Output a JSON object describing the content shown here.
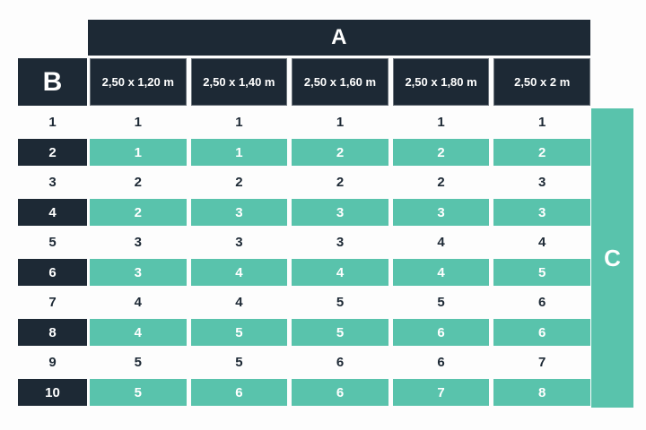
{
  "colors": {
    "navy": "#1d2935",
    "teal": "#59c3ac",
    "background": "#fdfdfd",
    "light_text": "#ffffff"
  },
  "table": {
    "a_header": "A",
    "b_header": "B",
    "c_header": "C",
    "columns": [
      "2,50 x 1,20 m",
      "2,50 x 1,40 m",
      "2,50 x 1,60 m",
      "2,50 x 1,80 m",
      "2,50 x 2 m"
    ],
    "rows": [
      {
        "label": "1",
        "values": [
          "1",
          "1",
          "1",
          "1",
          "1"
        ],
        "highlighted": false
      },
      {
        "label": "2",
        "values": [
          "1",
          "1",
          "2",
          "2",
          "2"
        ],
        "highlighted": true
      },
      {
        "label": "3",
        "values": [
          "2",
          "2",
          "2",
          "2",
          "3"
        ],
        "highlighted": false
      },
      {
        "label": "4",
        "values": [
          "2",
          "3",
          "3",
          "3",
          "3"
        ],
        "highlighted": true
      },
      {
        "label": "5",
        "values": [
          "3",
          "3",
          "3",
          "4",
          "4"
        ],
        "highlighted": false
      },
      {
        "label": "6",
        "values": [
          "3",
          "4",
          "4",
          "4",
          "5"
        ],
        "highlighted": true
      },
      {
        "label": "7",
        "values": [
          "4",
          "4",
          "5",
          "5",
          "6"
        ],
        "highlighted": false
      },
      {
        "label": "8",
        "values": [
          "4",
          "5",
          "5",
          "6",
          "6"
        ],
        "highlighted": true
      },
      {
        "label": "9",
        "values": [
          "5",
          "5",
          "6",
          "6",
          "7"
        ],
        "highlighted": false
      },
      {
        "label": "10",
        "values": [
          "5",
          "6",
          "6",
          "7",
          "8"
        ],
        "highlighted": true
      }
    ]
  },
  "chart_data": {
    "type": "table",
    "title": "",
    "column_group_label": "A",
    "row_group_label": "B",
    "value_group_label": "C",
    "columns": [
      "2,50 x 1,20 m",
      "2,50 x 1,40 m",
      "2,50 x 1,60 m",
      "2,50 x 1,80 m",
      "2,50 x 2 m"
    ],
    "row_labels": [
      "1",
      "2",
      "3",
      "4",
      "5",
      "6",
      "7",
      "8",
      "9",
      "10"
    ],
    "values": [
      [
        1,
        1,
        1,
        1,
        1
      ],
      [
        1,
        1,
        2,
        2,
        2
      ],
      [
        2,
        2,
        2,
        2,
        3
      ],
      [
        2,
        3,
        3,
        3,
        3
      ],
      [
        3,
        3,
        3,
        4,
        4
      ],
      [
        3,
        4,
        4,
        4,
        5
      ],
      [
        4,
        4,
        5,
        5,
        6
      ],
      [
        4,
        5,
        5,
        6,
        6
      ],
      [
        5,
        5,
        6,
        6,
        7
      ],
      [
        5,
        6,
        6,
        7,
        8
      ]
    ],
    "layout_hints": {
      "highlighted_rows": [
        2,
        4,
        6,
        8,
        10
      ],
      "highlight_color": "#59c3ac",
      "header_color": "#1d2935"
    }
  }
}
